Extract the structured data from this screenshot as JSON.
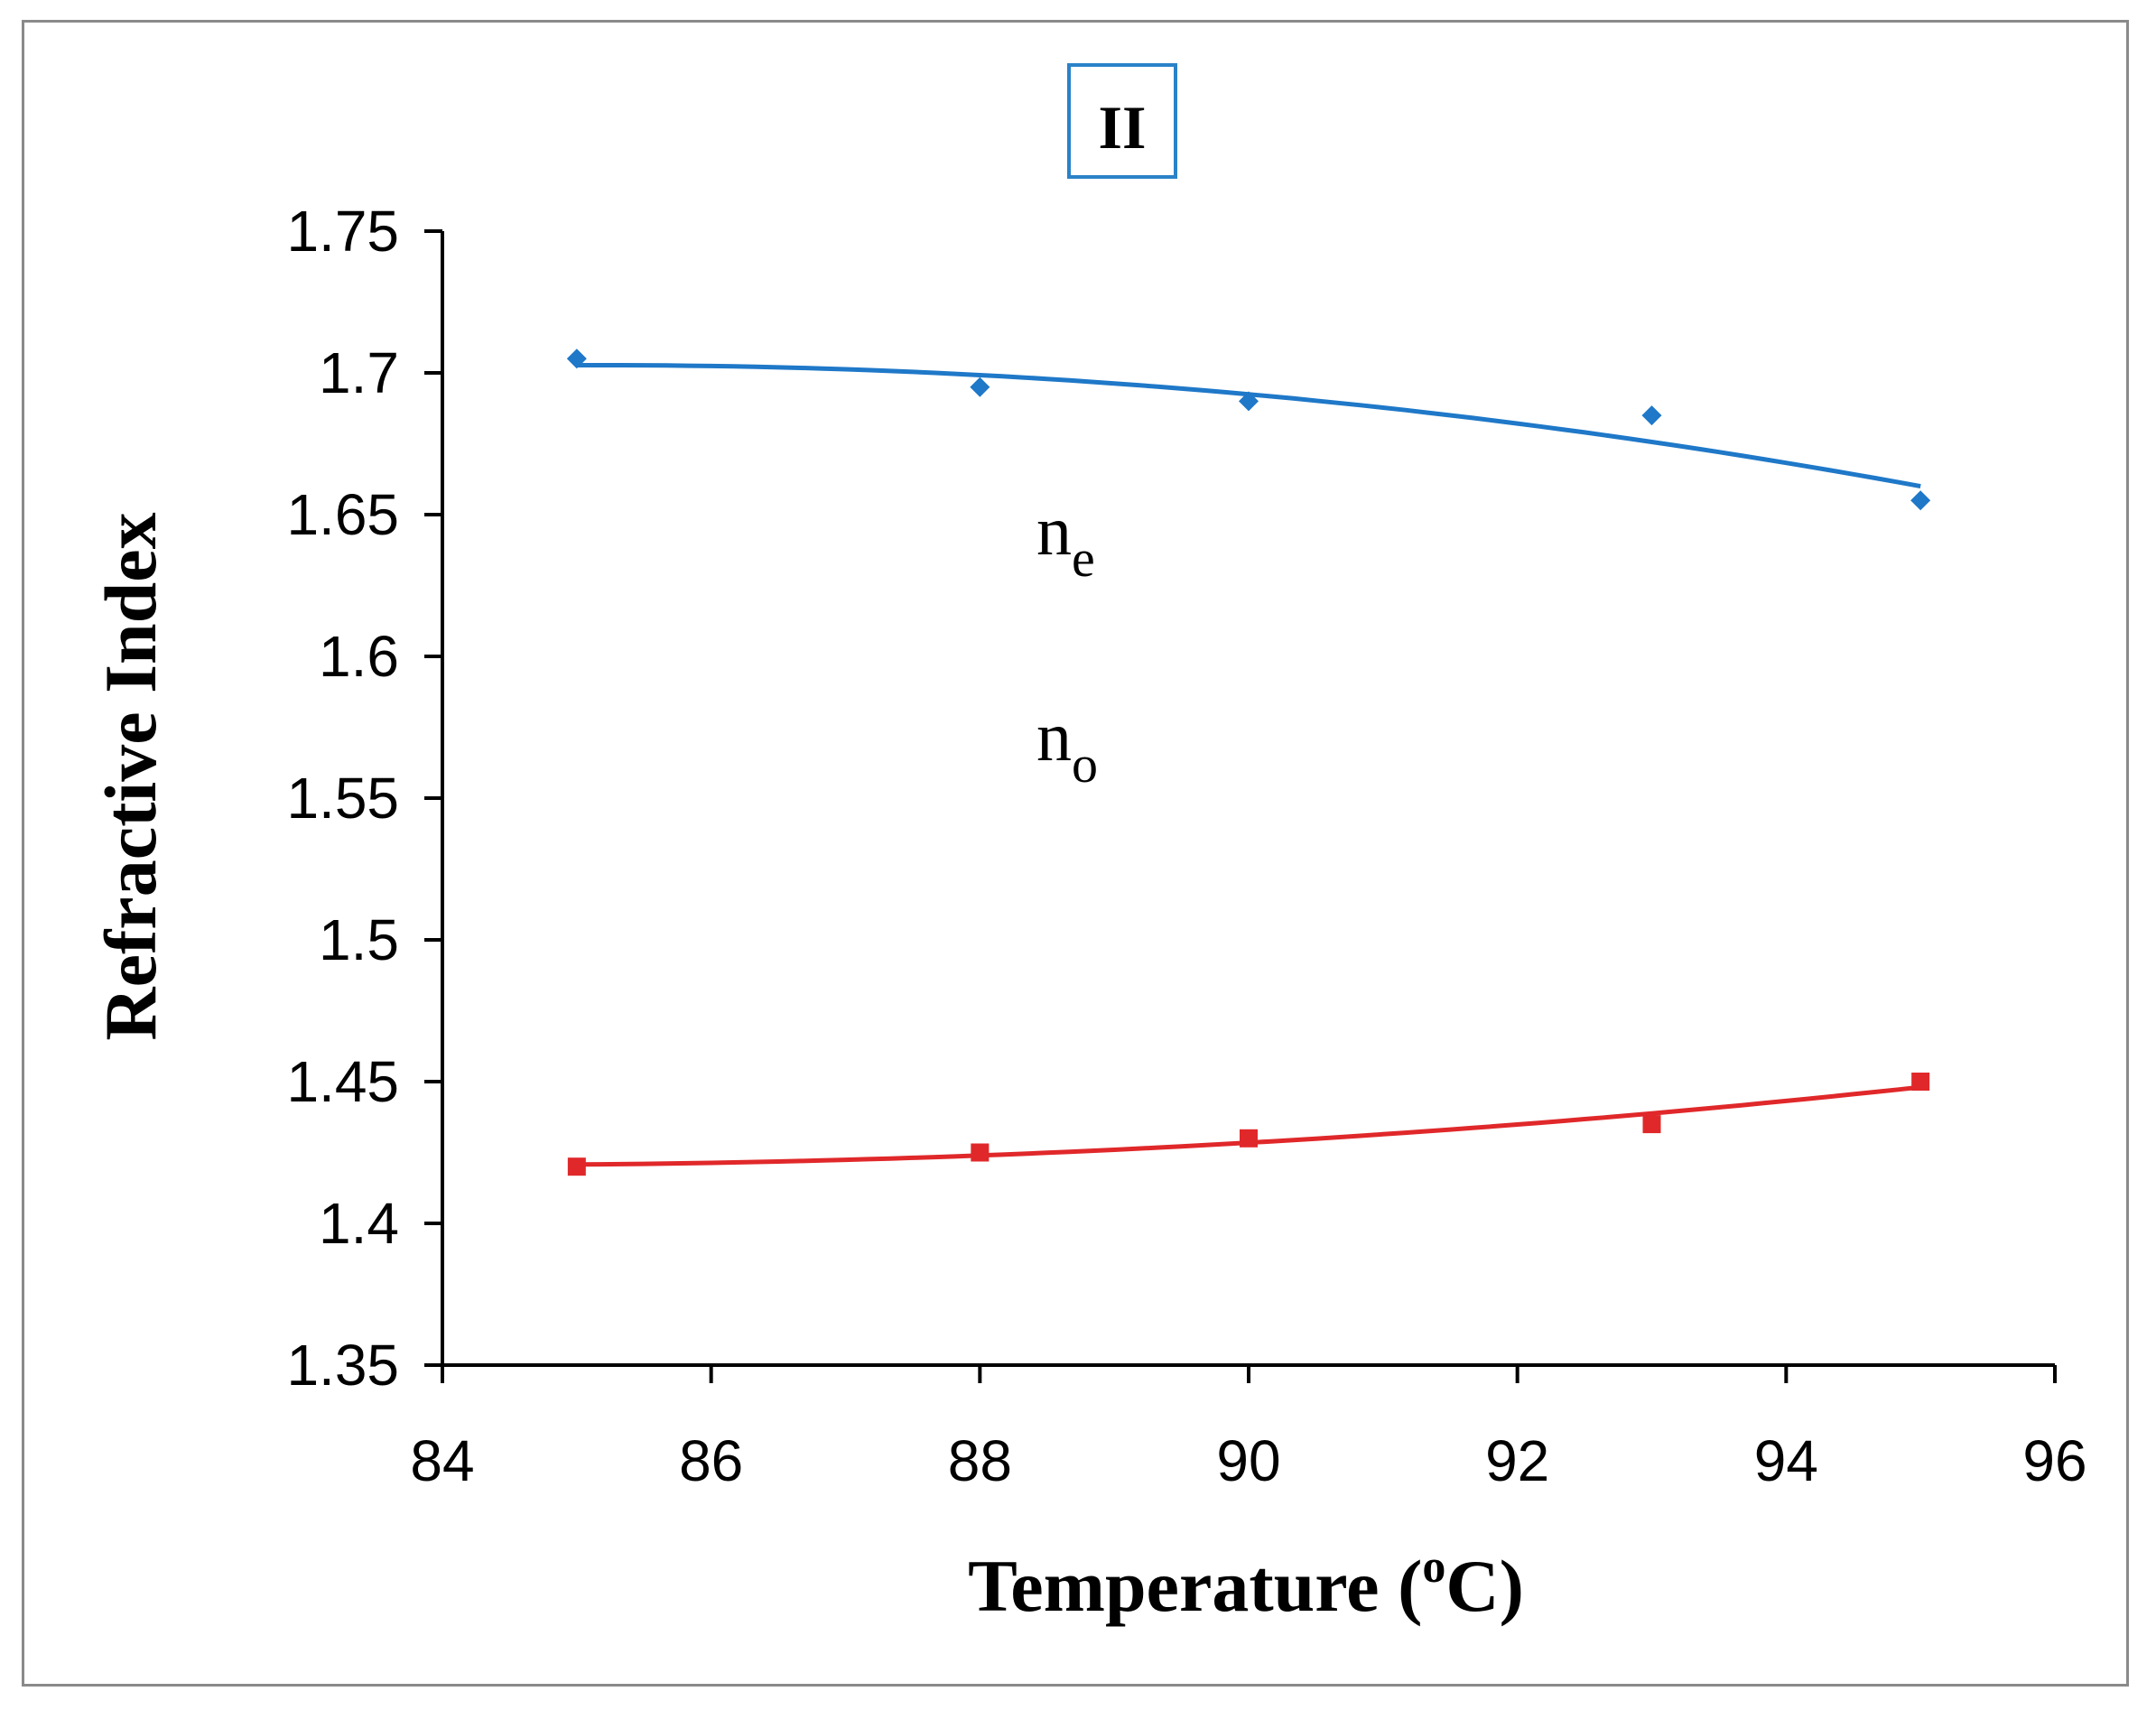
{
  "chart_data": {
    "type": "scatter",
    "title": "II",
    "xlabel": "Temperature (oC)",
    "xlabel_parts": {
      "main": "Temperature (",
      "sup": "o",
      "unit": "C)"
    },
    "ylabel": "Refractive Index",
    "xlim": [
      84,
      96
    ],
    "ylim": [
      1.35,
      1.75
    ],
    "xticks": [
      84,
      86,
      88,
      90,
      92,
      94,
      96
    ],
    "yticks": [
      1.35,
      1.4,
      1.45,
      1.5,
      1.55,
      1.6,
      1.65,
      1.7,
      1.75
    ],
    "xtick_labels": [
      "84",
      "86",
      "88",
      "90",
      "92",
      "94",
      "96"
    ],
    "ytick_labels": [
      "1.35",
      "1.4",
      "1.45",
      "1.5",
      "1.55",
      "1.6",
      "1.65",
      "1.7",
      "1.75"
    ],
    "grid": false,
    "series": [
      {
        "name": "ne",
        "label_main": "n",
        "label_sub": "e",
        "color": "#1f78c8",
        "marker": "diamond",
        "x": [
          85,
          88,
          90,
          93,
          95
        ],
        "y": [
          1.705,
          1.695,
          1.69,
          1.685,
          1.655
        ],
        "trendline": "polynomial-2"
      },
      {
        "name": "no",
        "label_main": "n",
        "label_sub": "o",
        "color": "#e0282a",
        "marker": "square",
        "x": [
          85,
          88,
          90,
          93,
          95
        ],
        "y": [
          1.42,
          1.425,
          1.43,
          1.435,
          1.45
        ],
        "trendline": "polynomial-2"
      }
    ]
  }
}
